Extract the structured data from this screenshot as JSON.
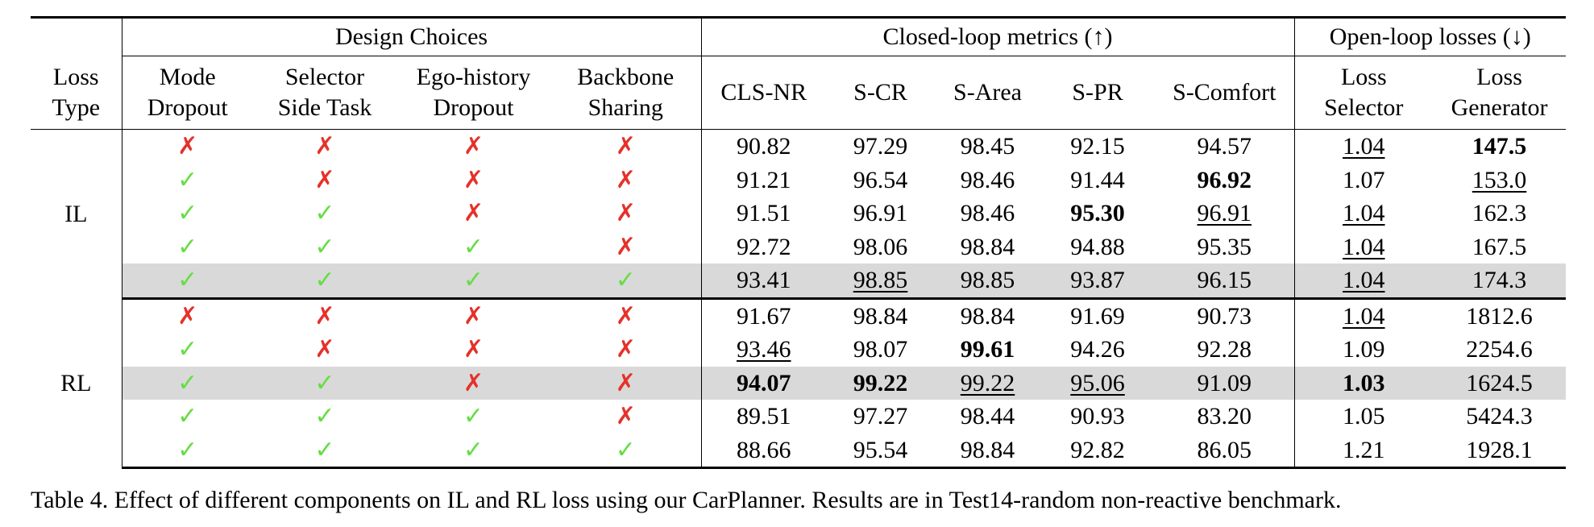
{
  "table": {
    "group_headers": [
      {
        "text": "Design Choices",
        "span": 4
      },
      {
        "text": "Closed-loop metrics (↑)",
        "span": 5
      },
      {
        "text": "Open-loop losses (↓)",
        "span": 2
      }
    ],
    "columns": [
      [
        "Loss",
        "Type"
      ],
      [
        "Mode",
        "Dropout"
      ],
      [
        "Selector",
        "Side Task"
      ],
      [
        "Ego-history",
        "Dropout"
      ],
      [
        "Backbone",
        "Sharing"
      ],
      [
        "CLS-NR"
      ],
      [
        "S-CR"
      ],
      [
        "S-Area"
      ],
      [
        "S-PR"
      ],
      [
        "S-Comfort"
      ],
      [
        "Loss",
        "Selector"
      ],
      [
        "Loss",
        "Generator"
      ]
    ],
    "sections": [
      {
        "label": "IL",
        "rows": [
          {
            "cells": [
              "✗",
              "✗",
              "✗",
              "✗",
              "90.82",
              "97.29",
              "98.45",
              "92.15",
              "94.57",
              "1.04",
              "147.5"
            ],
            "bold": [
              10
            ],
            "underline": [
              9
            ],
            "highlight": false
          },
          {
            "cells": [
              "✓",
              "✗",
              "✗",
              "✗",
              "91.21",
              "96.54",
              "98.46",
              "91.44",
              "96.92",
              "1.07",
              "153.0"
            ],
            "bold": [
              8
            ],
            "underline": [
              10
            ],
            "highlight": false
          },
          {
            "cells": [
              "✓",
              "✓",
              "✗",
              "✗",
              "91.51",
              "96.91",
              "98.46",
              "95.30",
              "96.91",
              "1.04",
              "162.3"
            ],
            "bold": [
              7
            ],
            "underline": [
              8,
              9
            ],
            "highlight": false
          },
          {
            "cells": [
              "✓",
              "✓",
              "✓",
              "✗",
              "92.72",
              "98.06",
              "98.84",
              "94.88",
              "95.35",
              "1.04",
              "167.5"
            ],
            "bold": [],
            "underline": [
              9
            ],
            "highlight": false
          },
          {
            "cells": [
              "✓",
              "✓",
              "✓",
              "✓",
              "93.41",
              "98.85",
              "98.85",
              "93.87",
              "96.15",
              "1.04",
              "174.3"
            ],
            "bold": [],
            "underline": [
              5,
              9
            ],
            "highlight": true
          }
        ]
      },
      {
        "label": "RL",
        "rows": [
          {
            "cells": [
              "✗",
              "✗",
              "✗",
              "✗",
              "91.67",
              "98.84",
              "98.84",
              "91.69",
              "90.73",
              "1.04",
              "1812.6"
            ],
            "bold": [],
            "underline": [
              9
            ],
            "highlight": false
          },
          {
            "cells": [
              "✓",
              "✗",
              "✗",
              "✗",
              "93.46",
              "98.07",
              "99.61",
              "94.26",
              "92.28",
              "1.09",
              "2254.6"
            ],
            "bold": [
              6
            ],
            "underline": [
              4
            ],
            "highlight": false
          },
          {
            "cells": [
              "✓",
              "✓",
              "✗",
              "✗",
              "94.07",
              "99.22",
              "99.22",
              "95.06",
              "91.09",
              "1.03",
              "1624.5"
            ],
            "bold": [
              4,
              5,
              9
            ],
            "underline": [
              6,
              7
            ],
            "highlight": true
          },
          {
            "cells": [
              "✓",
              "✓",
              "✓",
              "✗",
              "89.51",
              "97.27",
              "98.44",
              "90.93",
              "83.20",
              "1.05",
              "5424.3"
            ],
            "bold": [],
            "underline": [],
            "highlight": false
          },
          {
            "cells": [
              "✓",
              "✓",
              "✓",
              "✓",
              "88.66",
              "95.54",
              "98.84",
              "92.82",
              "86.05",
              "1.21",
              "1928.1"
            ],
            "bold": [],
            "underline": [],
            "highlight": false
          }
        ]
      }
    ]
  },
  "caption": "Table 4. Effect of different components on IL and RL loss using our CarPlanner. Results are in Test14-random non-reactive benchmark."
}
